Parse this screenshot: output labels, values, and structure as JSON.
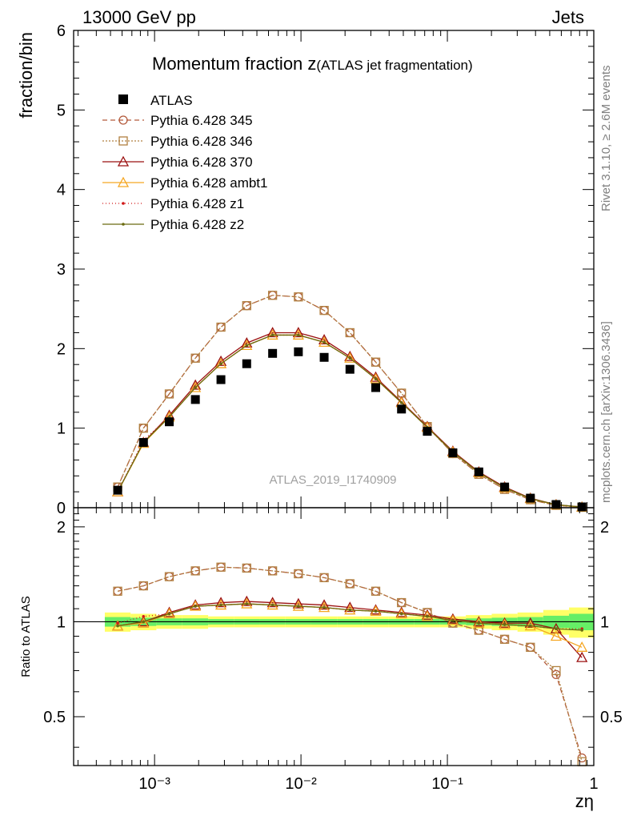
{
  "header": {
    "left": "13000 GeV pp",
    "right": "Jets"
  },
  "side_labels": {
    "rivet": "Rivet 3.1.10, ≥ 2.6M events",
    "mcplots": "mcplots.cern.ch [arXiv:1306.3436]"
  },
  "chart_data": {
    "type": "line",
    "title_main": "Momentum fraction z",
    "title_sub": "(ATLAS jet fragmentation)",
    "watermark": "ATLAS_2019_I1740909",
    "ylabel": "fraction/bin",
    "ratio_ylabel": "Ratio to ATLAS",
    "xlabel": "zη",
    "xscale": "log",
    "xlim": [
      0.00028,
      1.0
    ],
    "ylim": [
      0,
      6
    ],
    "ratio_ylim": [
      0.35,
      2.3
    ],
    "main_yticks": [
      "0",
      "1",
      "2",
      "3",
      "4",
      "5",
      "6"
    ],
    "ratio_yticks": [
      "0.5",
      "1",
      "2"
    ],
    "x_ticklabels": [
      "10⁻³",
      "10⁻²",
      "10⁻¹",
      "1"
    ],
    "legend_position": "top-left",
    "x": [
      0.00056,
      0.00084,
      0.00126,
      0.0019,
      0.00284,
      0.00426,
      0.0064,
      0.0096,
      0.0144,
      0.0216,
      0.0324,
      0.0486,
      0.0729,
      0.109,
      0.164,
      0.246,
      0.369,
      0.553,
      0.83
    ],
    "data": {
      "name": "ATLAS",
      "values": [
        0.22,
        0.82,
        1.08,
        1.36,
        1.61,
        1.81,
        1.94,
        1.96,
        1.89,
        1.74,
        1.51,
        1.24,
        0.96,
        0.69,
        0.45,
        0.26,
        0.12,
        0.04,
        0.01
      ]
    },
    "band": {
      "inner_lo": [
        0.965,
        0.97,
        0.975,
        0.975,
        0.98,
        0.98,
        0.98,
        0.98,
        0.98,
        0.98,
        0.98,
        0.98,
        0.98,
        0.98,
        0.975,
        0.97,
        0.965,
        0.955,
        0.94
      ],
      "inner_hi": [
        1.035,
        1.03,
        1.025,
        1.025,
        1.02,
        1.02,
        1.02,
        1.02,
        1.02,
        1.02,
        1.02,
        1.02,
        1.02,
        1.02,
        1.025,
        1.03,
        1.035,
        1.045,
        1.06
      ],
      "outer_lo": [
        0.93,
        0.94,
        0.95,
        0.95,
        0.96,
        0.96,
        0.96,
        0.96,
        0.96,
        0.96,
        0.96,
        0.96,
        0.96,
        0.96,
        0.95,
        0.94,
        0.93,
        0.91,
        0.89
      ],
      "outer_hi": [
        1.07,
        1.06,
        1.05,
        1.05,
        1.04,
        1.04,
        1.04,
        1.04,
        1.04,
        1.04,
        1.04,
        1.04,
        1.04,
        1.04,
        1.05,
        1.06,
        1.07,
        1.09,
        1.11
      ]
    },
    "colors": {
      "band_inner": "#66ee66",
      "band_outer": "#ffff66",
      "data": "#000000"
    },
    "series": [
      {
        "name": "Pythia 6.428 345",
        "color": "#b35a3c",
        "dash": "6,4",
        "marker": "circle",
        "values": [
          0.26,
          1.0,
          1.43,
          1.88,
          2.27,
          2.54,
          2.67,
          2.65,
          2.48,
          2.2,
          1.83,
          1.44,
          1.02,
          0.68,
          0.42,
          0.23,
          0.1,
          0.03,
          0.005
        ],
        "ratio": [
          1.25,
          1.3,
          1.39,
          1.45,
          1.49,
          1.48,
          1.45,
          1.42,
          1.38,
          1.32,
          1.25,
          1.15,
          1.07,
          0.99,
          0.94,
          0.88,
          0.83,
          0.68,
          0.37
        ]
      },
      {
        "name": "Pythia 6.428 346",
        "color": "#b08040",
        "dash": "2,2",
        "marker": "square",
        "values": [
          0.26,
          1.0,
          1.43,
          1.88,
          2.27,
          2.54,
          2.67,
          2.65,
          2.48,
          2.2,
          1.83,
          1.44,
          1.02,
          0.68,
          0.42,
          0.23,
          0.1,
          0.03,
          0.005
        ],
        "ratio": [
          1.25,
          1.3,
          1.39,
          1.45,
          1.49,
          1.48,
          1.45,
          1.42,
          1.38,
          1.32,
          1.25,
          1.15,
          1.07,
          0.99,
          0.94,
          0.88,
          0.83,
          0.7,
          0.36
        ]
      },
      {
        "name": "Pythia 6.428 370",
        "color": "#9b1010",
        "dash": "",
        "marker": "triangle",
        "values": [
          0.2,
          0.82,
          1.16,
          1.54,
          1.84,
          2.07,
          2.2,
          2.2,
          2.11,
          1.9,
          1.64,
          1.33,
          1.02,
          0.71,
          0.45,
          0.26,
          0.12,
          0.038,
          0.008
        ],
        "ratio": [
          0.97,
          1.0,
          1.07,
          1.13,
          1.15,
          1.16,
          1.15,
          1.14,
          1.13,
          1.11,
          1.09,
          1.07,
          1.05,
          1.02,
          1.0,
          0.99,
          0.99,
          0.95,
          0.77
        ]
      },
      {
        "name": "Pythia 6.428 ambt1",
        "color": "#f5a623",
        "dash": "",
        "marker": "triangle",
        "values": [
          0.2,
          0.81,
          1.14,
          1.51,
          1.81,
          2.04,
          2.17,
          2.17,
          2.08,
          1.88,
          1.62,
          1.32,
          1.01,
          0.7,
          0.44,
          0.25,
          0.115,
          0.036,
          0.007
        ],
        "ratio": [
          0.97,
          0.99,
          1.06,
          1.12,
          1.13,
          1.14,
          1.13,
          1.12,
          1.11,
          1.09,
          1.08,
          1.06,
          1.04,
          1.01,
          0.99,
          0.98,
          0.97,
          0.9,
          0.83
        ]
      },
      {
        "name": "Pythia 6.428 z1",
        "color": "#d01818",
        "dash": "1,3",
        "marker": "dot",
        "values": [
          0.2,
          0.85,
          1.14,
          1.51,
          1.81,
          2.04,
          2.17,
          2.17,
          2.08,
          1.88,
          1.62,
          1.32,
          1.01,
          0.7,
          0.44,
          0.25,
          0.115,
          0.038,
          0.009
        ],
        "ratio": [
          0.99,
          1.04,
          1.06,
          1.12,
          1.13,
          1.14,
          1.13,
          1.12,
          1.11,
          1.09,
          1.08,
          1.06,
          1.04,
          1.01,
          0.99,
          0.98,
          0.97,
          0.95,
          0.95
        ]
      },
      {
        "name": "Pythia 6.428 z2",
        "color": "#6b6b10",
        "dash": "",
        "marker": "dot",
        "values": [
          0.2,
          0.82,
          1.14,
          1.51,
          1.81,
          2.04,
          2.17,
          2.17,
          2.08,
          1.88,
          1.62,
          1.32,
          1.01,
          0.7,
          0.44,
          0.25,
          0.115,
          0.038,
          0.009
        ],
        "ratio": [
          0.97,
          1.0,
          1.06,
          1.12,
          1.13,
          1.14,
          1.13,
          1.12,
          1.11,
          1.09,
          1.08,
          1.06,
          1.04,
          1.01,
          0.99,
          0.98,
          0.97,
          0.95,
          0.94
        ]
      }
    ]
  }
}
